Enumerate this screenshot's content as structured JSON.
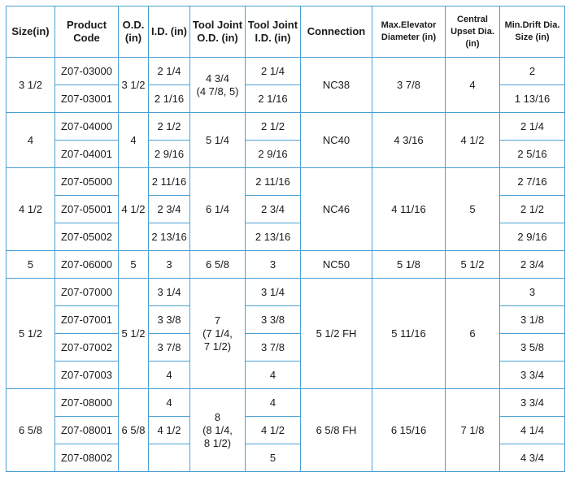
{
  "headers": {
    "size": "Size(in)",
    "code": "Product Code",
    "od": "O.D. (in)",
    "id": "I.D. (in)",
    "tj_od": "Tool Joint O.D. (in)",
    "tj_id": "Tool Joint I.D. (in)",
    "connection": "Connection",
    "elevator": "Max.Elevator Diameter (in)",
    "upset": "Central Upset Dia. (in)",
    "drift": "Min.Drift Dia. Size (in)"
  },
  "groups": [
    {
      "size": "3 1/2",
      "od": "3 1/2",
      "tj_od": "4 3/4",
      "tj_od_alt": "(4 7/8, 5)",
      "connection": "NC38",
      "elevator": "3 7/8",
      "upset": "4",
      "rows": [
        {
          "code": "Z07-03000",
          "id": "2 1/4",
          "tj_id": "2 1/4",
          "drift": "2"
        },
        {
          "code": "Z07-03001",
          "id": "2 1/16",
          "tj_id": "2 1/16",
          "drift": "1 13/16"
        }
      ]
    },
    {
      "size": "4",
      "od": "4",
      "tj_od": "5 1/4",
      "connection": "NC40",
      "elevator": "4 3/16",
      "upset": "4 1/2",
      "rows": [
        {
          "code": "Z07-04000",
          "id": "2 1/2",
          "tj_id": "2 1/2",
          "drift": "2 1/4"
        },
        {
          "code": "Z07-04001",
          "id": "2 9/16",
          "tj_id": "2 9/16",
          "drift": "2 5/16"
        }
      ]
    },
    {
      "size": "4 1/2",
      "od": "4 1/2",
      "tj_od": "6 1/4",
      "connection": "NC46",
      "elevator": "4 11/16",
      "upset": "5",
      "rows": [
        {
          "code": "Z07-05000",
          "id": "2 11/16",
          "tj_id": "2 11/16",
          "drift": "2 7/16"
        },
        {
          "code": "Z07-05001",
          "id": "2 3/4",
          "tj_id": "2 3/4",
          "drift": "2 1/2"
        },
        {
          "code": "Z07-05002",
          "id": "2 13/16",
          "tj_id": "2 13/16",
          "drift": "2 9/16"
        }
      ]
    },
    {
      "size": "5",
      "od": "5",
      "tj_od": "6 5/8",
      "connection": "NC50",
      "elevator": "5 1/8",
      "upset": "5 1/2",
      "rows": [
        {
          "code": "Z07-06000",
          "id": "3",
          "tj_id": "3",
          "drift": "2 3/4"
        }
      ]
    },
    {
      "size": "5 1/2",
      "od": "5 1/2",
      "tj_od": "7",
      "tj_od_alt1": "(7 1/4,",
      "tj_od_alt2": "7 1/2)",
      "connection": "5 1/2 FH",
      "elevator": "5 11/16",
      "upset": "6",
      "rows": [
        {
          "code": "Z07-07000",
          "id": "3 1/4",
          "tj_id": "3 1/4",
          "drift": "3"
        },
        {
          "code": "Z07-07001",
          "id": "3 3/8",
          "tj_id": "3 3/8",
          "drift": "3 1/8"
        },
        {
          "code": "Z07-07002",
          "id": "3 7/8",
          "tj_id": "3 7/8",
          "drift": "3 5/8"
        },
        {
          "code": "Z07-07003",
          "id": "4",
          "tj_id": "4",
          "drift": "3 3/4"
        }
      ]
    },
    {
      "size": "6 5/8",
      "od": "6 5/8",
      "tj_od": "8",
      "tj_od_alt1": "(8 1/4,",
      "tj_od_alt2": "8 1/2)",
      "connection": "6 5/8 FH",
      "elevator": "6 15/16",
      "upset": "7 1/8",
      "rows": [
        {
          "code": "Z07-08000",
          "id": "4",
          "tj_id": "4",
          "drift": "3 3/4"
        },
        {
          "code": "Z07-08001",
          "id": "4 1/2",
          "tj_id": "4 1/2",
          "drift": "4 1/4"
        },
        {
          "code": "Z07-08002",
          "id": "",
          "tj_id": "5",
          "drift": "4 3/4"
        }
      ]
    }
  ]
}
